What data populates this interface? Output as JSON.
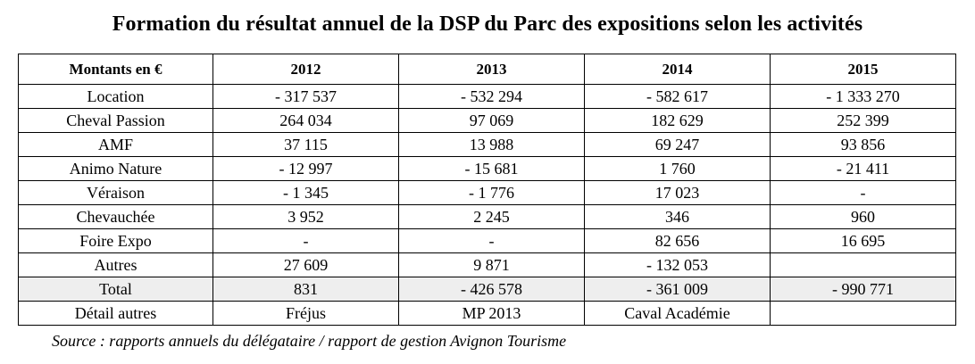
{
  "title": "Formation du résultat annuel de la DSP du Parc des expositions selon les activités",
  "table": {
    "headers": [
      "Montants en €",
      "2012",
      "2013",
      "2014",
      "2015"
    ],
    "rows": [
      {
        "label": "Location",
        "values": [
          "- 317 537",
          "-  532 294",
          "-  582 617",
          "-  1 333 270"
        ]
      },
      {
        "label": "Cheval Passion",
        "values": [
          "264 034",
          "97 069",
          "182 629",
          "252 399"
        ]
      },
      {
        "label": "AMF",
        "values": [
          "37 115",
          "13 988",
          "69 247",
          "93 856"
        ]
      },
      {
        "label": "Animo Nature",
        "values": [
          "- 12 997",
          "- 15 681",
          "1 760",
          "-  21 411"
        ]
      },
      {
        "label": "Véraison",
        "values": [
          "-  1 345",
          "- 1 776",
          "17 023",
          "-"
        ]
      },
      {
        "label": "Chevauchée",
        "values": [
          "3 952",
          "2 245",
          "346",
          "960"
        ]
      },
      {
        "label": "Foire Expo",
        "values": [
          "-",
          "-",
          "82 656",
          "16 695"
        ]
      },
      {
        "label": "Autres",
        "values": [
          "27 609",
          "9 871",
          "- 132 053",
          ""
        ]
      },
      {
        "label": "Total",
        "values": [
          "831",
          "-  426 578",
          "- 361 009",
          "- 990 771"
        ]
      },
      {
        "label": "Détail autres",
        "values": [
          "Fréjus",
          "MP 2013",
          "Caval Académie",
          ""
        ]
      }
    ]
  },
  "source": "Source : rapports annuels du délégataire / rapport de gestion Avignon Tourisme"
}
